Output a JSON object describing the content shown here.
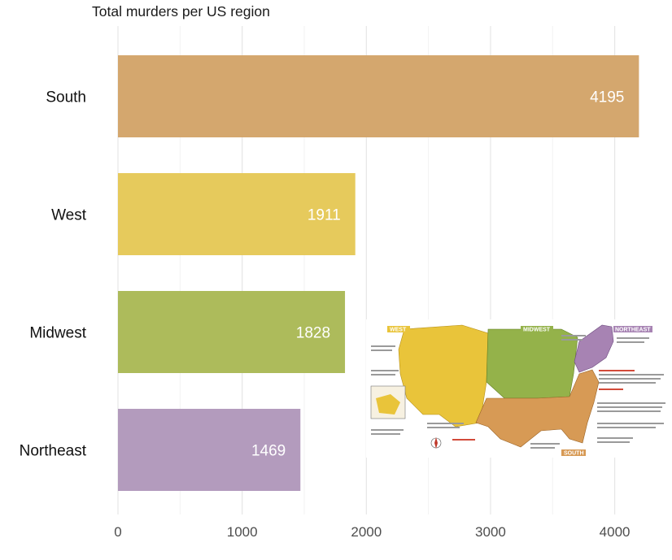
{
  "chart_data": {
    "type": "bar",
    "orientation": "horizontal",
    "title": "Total murders per US region",
    "xlabel": "",
    "ylabel": "",
    "categories": [
      "South",
      "West",
      "Midwest",
      "Northeast"
    ],
    "values": [
      4195,
      1911,
      1828,
      1469
    ],
    "colors": [
      "#d4a76e",
      "#e6ca5c",
      "#adbb5b",
      "#b39bbd"
    ],
    "xlim": [
      0,
      4200
    ],
    "xticks": [
      0,
      1000,
      2000,
      3000,
      4000
    ],
    "data_labels": [
      "4195",
      "1911",
      "1828",
      "1469"
    ],
    "grid": true
  },
  "inset_map": {
    "region_labels": [
      "WEST",
      "MIDWEST",
      "NORTHEAST",
      "SOUTH"
    ],
    "colors": {
      "west": "#e9c43a",
      "midwest": "#94b24a",
      "northeast": "#a783b3",
      "south": "#d79a55"
    }
  }
}
